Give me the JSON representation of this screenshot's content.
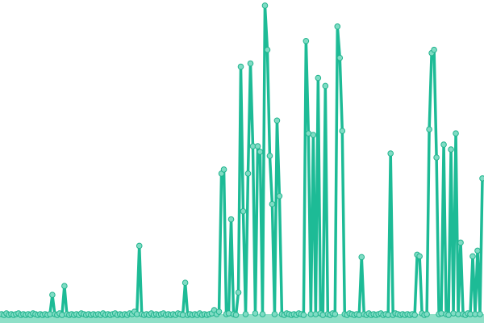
{
  "chart_data": {
    "type": "line",
    "title": "",
    "xlabel": "",
    "ylabel": "",
    "grid": false,
    "legend": "none",
    "markers": true,
    "area_fill": true,
    "ylim": [
      0,
      390
    ],
    "colors": {
      "line": "#1dbb96",
      "marker_fill": "#7fdcc4",
      "marker_stroke": "#22b48e",
      "area": "#8fe0c8"
    },
    "series": [
      {
        "values": [
          3,
          2,
          4,
          2,
          3,
          2,
          3,
          4,
          2,
          3,
          2,
          3,
          2,
          4,
          3,
          2,
          3,
          2,
          3,
          2,
          3,
          27,
          3,
          2,
          4,
          2,
          38,
          3,
          2,
          3,
          2,
          3,
          2,
          4,
          3,
          2,
          3,
          2,
          3,
          2,
          3,
          2,
          4,
          2,
          3,
          2,
          3,
          4,
          2,
          3,
          2,
          3,
          2,
          4,
          3,
          6,
          3,
          88,
          3,
          2,
          3,
          2,
          4,
          2,
          3,
          2,
          3,
          4,
          2,
          3,
          2,
          3,
          2,
          4,
          3,
          2,
          42,
          2,
          3,
          2,
          3,
          2,
          4,
          2,
          3,
          2,
          3,
          4,
          8,
          3,
          6,
          178,
          183,
          3,
          4,
          121,
          3,
          2,
          30,
          311,
          131,
          3,
          178,
          315,
          212,
          4,
          212,
          205,
          3,
          387,
          332,
          200,
          140,
          3,
          244,
          150,
          3,
          2,
          4,
          3,
          2,
          3,
          2,
          4,
          3,
          2,
          343,
          228,
          3,
          226,
          3,
          297,
          4,
          2,
          287,
          3,
          2,
          4,
          3,
          361,
          322,
          231,
          3,
          2,
          4,
          3,
          2,
          3,
          2,
          74,
          3,
          2,
          4,
          2,
          3,
          2,
          3,
          4,
          2,
          3,
          2,
          203,
          2,
          4,
          3,
          2,
          3,
          2,
          3,
          2,
          3,
          2,
          77,
          75,
          4,
          2,
          3,
          233,
          328,
          332,
          198,
          3,
          4,
          214,
          3,
          2,
          208,
          4,
          228,
          3,
          92,
          3,
          2,
          4,
          3,
          75,
          3,
          82,
          3,
          172
        ]
      }
    ]
  }
}
